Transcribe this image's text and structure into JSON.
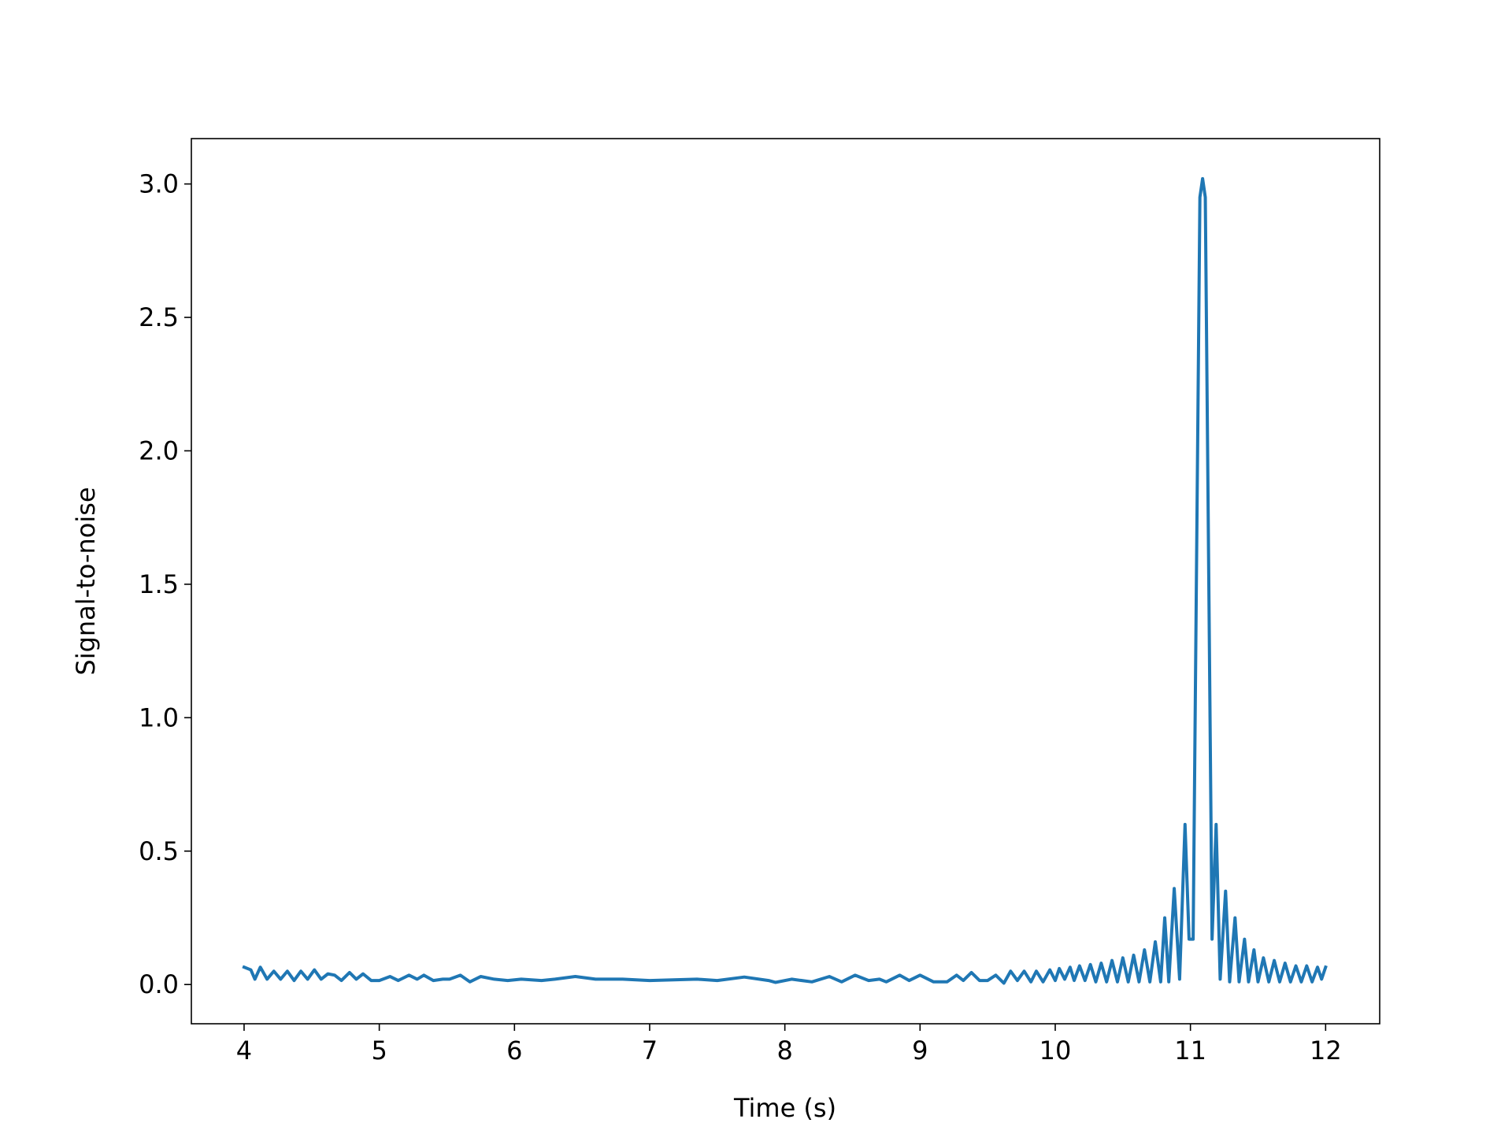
{
  "chart_data": {
    "type": "line",
    "xlabel": "Time (s)",
    "ylabel": "Signal-to-noise",
    "x": [
      4.0,
      4.05,
      4.08,
      4.12,
      4.17,
      4.22,
      4.27,
      4.32,
      4.37,
      4.42,
      4.47,
      4.52,
      4.57,
      4.62,
      4.67,
      4.72,
      4.78,
      4.83,
      4.88,
      4.94,
      5.0,
      5.08,
      5.14,
      5.22,
      5.28,
      5.33,
      5.4,
      5.47,
      5.52,
      5.6,
      5.67,
      5.75,
      5.85,
      5.95,
      6.05,
      6.2,
      6.3,
      6.45,
      6.6,
      6.8,
      7.0,
      7.2,
      7.35,
      7.5,
      7.7,
      7.88,
      7.93,
      8.05,
      8.2,
      8.33,
      8.42,
      8.52,
      8.62,
      8.7,
      8.75,
      8.85,
      8.92,
      9.0,
      9.1,
      9.2,
      9.27,
      9.32,
      9.38,
      9.44,
      9.5,
      9.56,
      9.62,
      9.67,
      9.72,
      9.77,
      9.82,
      9.86,
      9.91,
      9.96,
      10.0,
      10.03,
      10.07,
      10.11,
      10.14,
      10.18,
      10.22,
      10.26,
      10.3,
      10.34,
      10.38,
      10.42,
      10.46,
      10.5,
      10.54,
      10.58,
      10.62,
      10.66,
      10.7,
      10.74,
      10.78,
      10.81,
      10.84,
      10.88,
      10.92,
      10.96,
      10.99,
      11.02,
      11.07,
      11.09,
      11.11,
      11.16,
      11.19,
      11.22,
      11.26,
      11.29,
      11.33,
      11.36,
      11.4,
      11.43,
      11.47,
      11.5,
      11.54,
      11.58,
      11.62,
      11.66,
      11.7,
      11.74,
      11.78,
      11.82,
      11.86,
      11.9,
      11.94,
      11.97,
      12.0
    ],
    "series": [
      {
        "color": "#1f77b4",
        "values": [
          0.065,
          0.055,
          0.02,
          0.065,
          0.02,
          0.05,
          0.02,
          0.05,
          0.015,
          0.05,
          0.02,
          0.055,
          0.02,
          0.04,
          0.035,
          0.015,
          0.045,
          0.02,
          0.04,
          0.015,
          0.015,
          0.03,
          0.015,
          0.035,
          0.02,
          0.035,
          0.015,
          0.02,
          0.02,
          0.035,
          0.01,
          0.03,
          0.02,
          0.015,
          0.02,
          0.015,
          0.02,
          0.03,
          0.02,
          0.02,
          0.015,
          0.018,
          0.02,
          0.015,
          0.028,
          0.015,
          0.008,
          0.02,
          0.01,
          0.03,
          0.01,
          0.035,
          0.015,
          0.02,
          0.01,
          0.035,
          0.015,
          0.035,
          0.01,
          0.01,
          0.035,
          0.015,
          0.045,
          0.015,
          0.015,
          0.035,
          0.005,
          0.05,
          0.015,
          0.05,
          0.01,
          0.05,
          0.01,
          0.055,
          0.015,
          0.06,
          0.02,
          0.065,
          0.015,
          0.07,
          0.015,
          0.075,
          0.01,
          0.08,
          0.01,
          0.09,
          0.01,
          0.1,
          0.01,
          0.11,
          0.01,
          0.13,
          0.01,
          0.16,
          0.01,
          0.25,
          0.01,
          0.36,
          0.02,
          0.6,
          0.17,
          0.17,
          2.95,
          3.02,
          2.95,
          0.17,
          0.6,
          0.02,
          0.35,
          0.01,
          0.25,
          0.01,
          0.17,
          0.01,
          0.13,
          0.01,
          0.1,
          0.01,
          0.09,
          0.01,
          0.08,
          0.01,
          0.07,
          0.01,
          0.07,
          0.01,
          0.065,
          0.02,
          0.065
        ]
      }
    ],
    "xlim": [
      3.61,
      12.4
    ],
    "ylim": [
      -0.147,
      3.17
    ],
    "xticks": [
      4,
      5,
      6,
      7,
      8,
      9,
      10,
      11,
      12
    ],
    "yticks": [
      {
        "value": 0,
        "label": "0.0"
      },
      0.5,
      {
        "value": 1,
        "label": "1.0"
      },
      1.5,
      {
        "value": 2,
        "label": "2.0"
      },
      2.5,
      {
        "value": 3,
        "label": "3.0"
      }
    ]
  }
}
